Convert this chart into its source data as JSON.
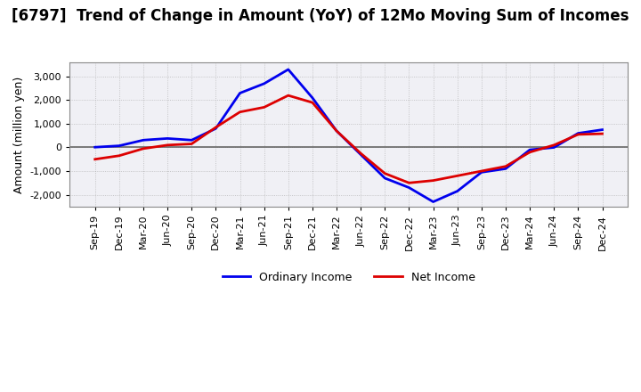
{
  "title": "[6797]  Trend of Change in Amount (YoY) of 12Mo Moving Sum of Incomes",
  "ylabel": "Amount (million yen)",
  "title_fontsize": 12,
  "label_fontsize": 9,
  "tick_fontsize": 8,
  "background_color": "#ffffff",
  "plot_bg_color": "#f0f0f5",
  "grid_color": "#aaaaaa",
  "ordinary_income_color": "#0000ee",
  "net_income_color": "#dd0000",
  "ylim": [
    -2500,
    3600
  ],
  "yticks": [
    -2000,
    -1000,
    0,
    1000,
    2000,
    3000
  ],
  "x_labels": [
    "Sep-19",
    "Dec-19",
    "Mar-20",
    "Jun-20",
    "Sep-20",
    "Dec-20",
    "Mar-21",
    "Jun-21",
    "Sep-21",
    "Dec-21",
    "Mar-22",
    "Jun-22",
    "Sep-22",
    "Dec-22",
    "Mar-23",
    "Jun-23",
    "Sep-23",
    "Dec-23",
    "Mar-24",
    "Jun-24",
    "Sep-24",
    "Dec-24"
  ],
  "ordinary_income": [
    10,
    70,
    310,
    380,
    310,
    800,
    2300,
    2700,
    3300,
    2100,
    700,
    -300,
    -1300,
    -1700,
    -2300,
    -1850,
    -1050,
    -900,
    -100,
    0,
    600,
    750
  ],
  "net_income": [
    -500,
    -350,
    -50,
    100,
    150,
    850,
    1500,
    1700,
    2200,
    1900,
    700,
    -250,
    -1100,
    -1500,
    -1400,
    -1200,
    -1000,
    -800,
    -200,
    100,
    550,
    580
  ]
}
